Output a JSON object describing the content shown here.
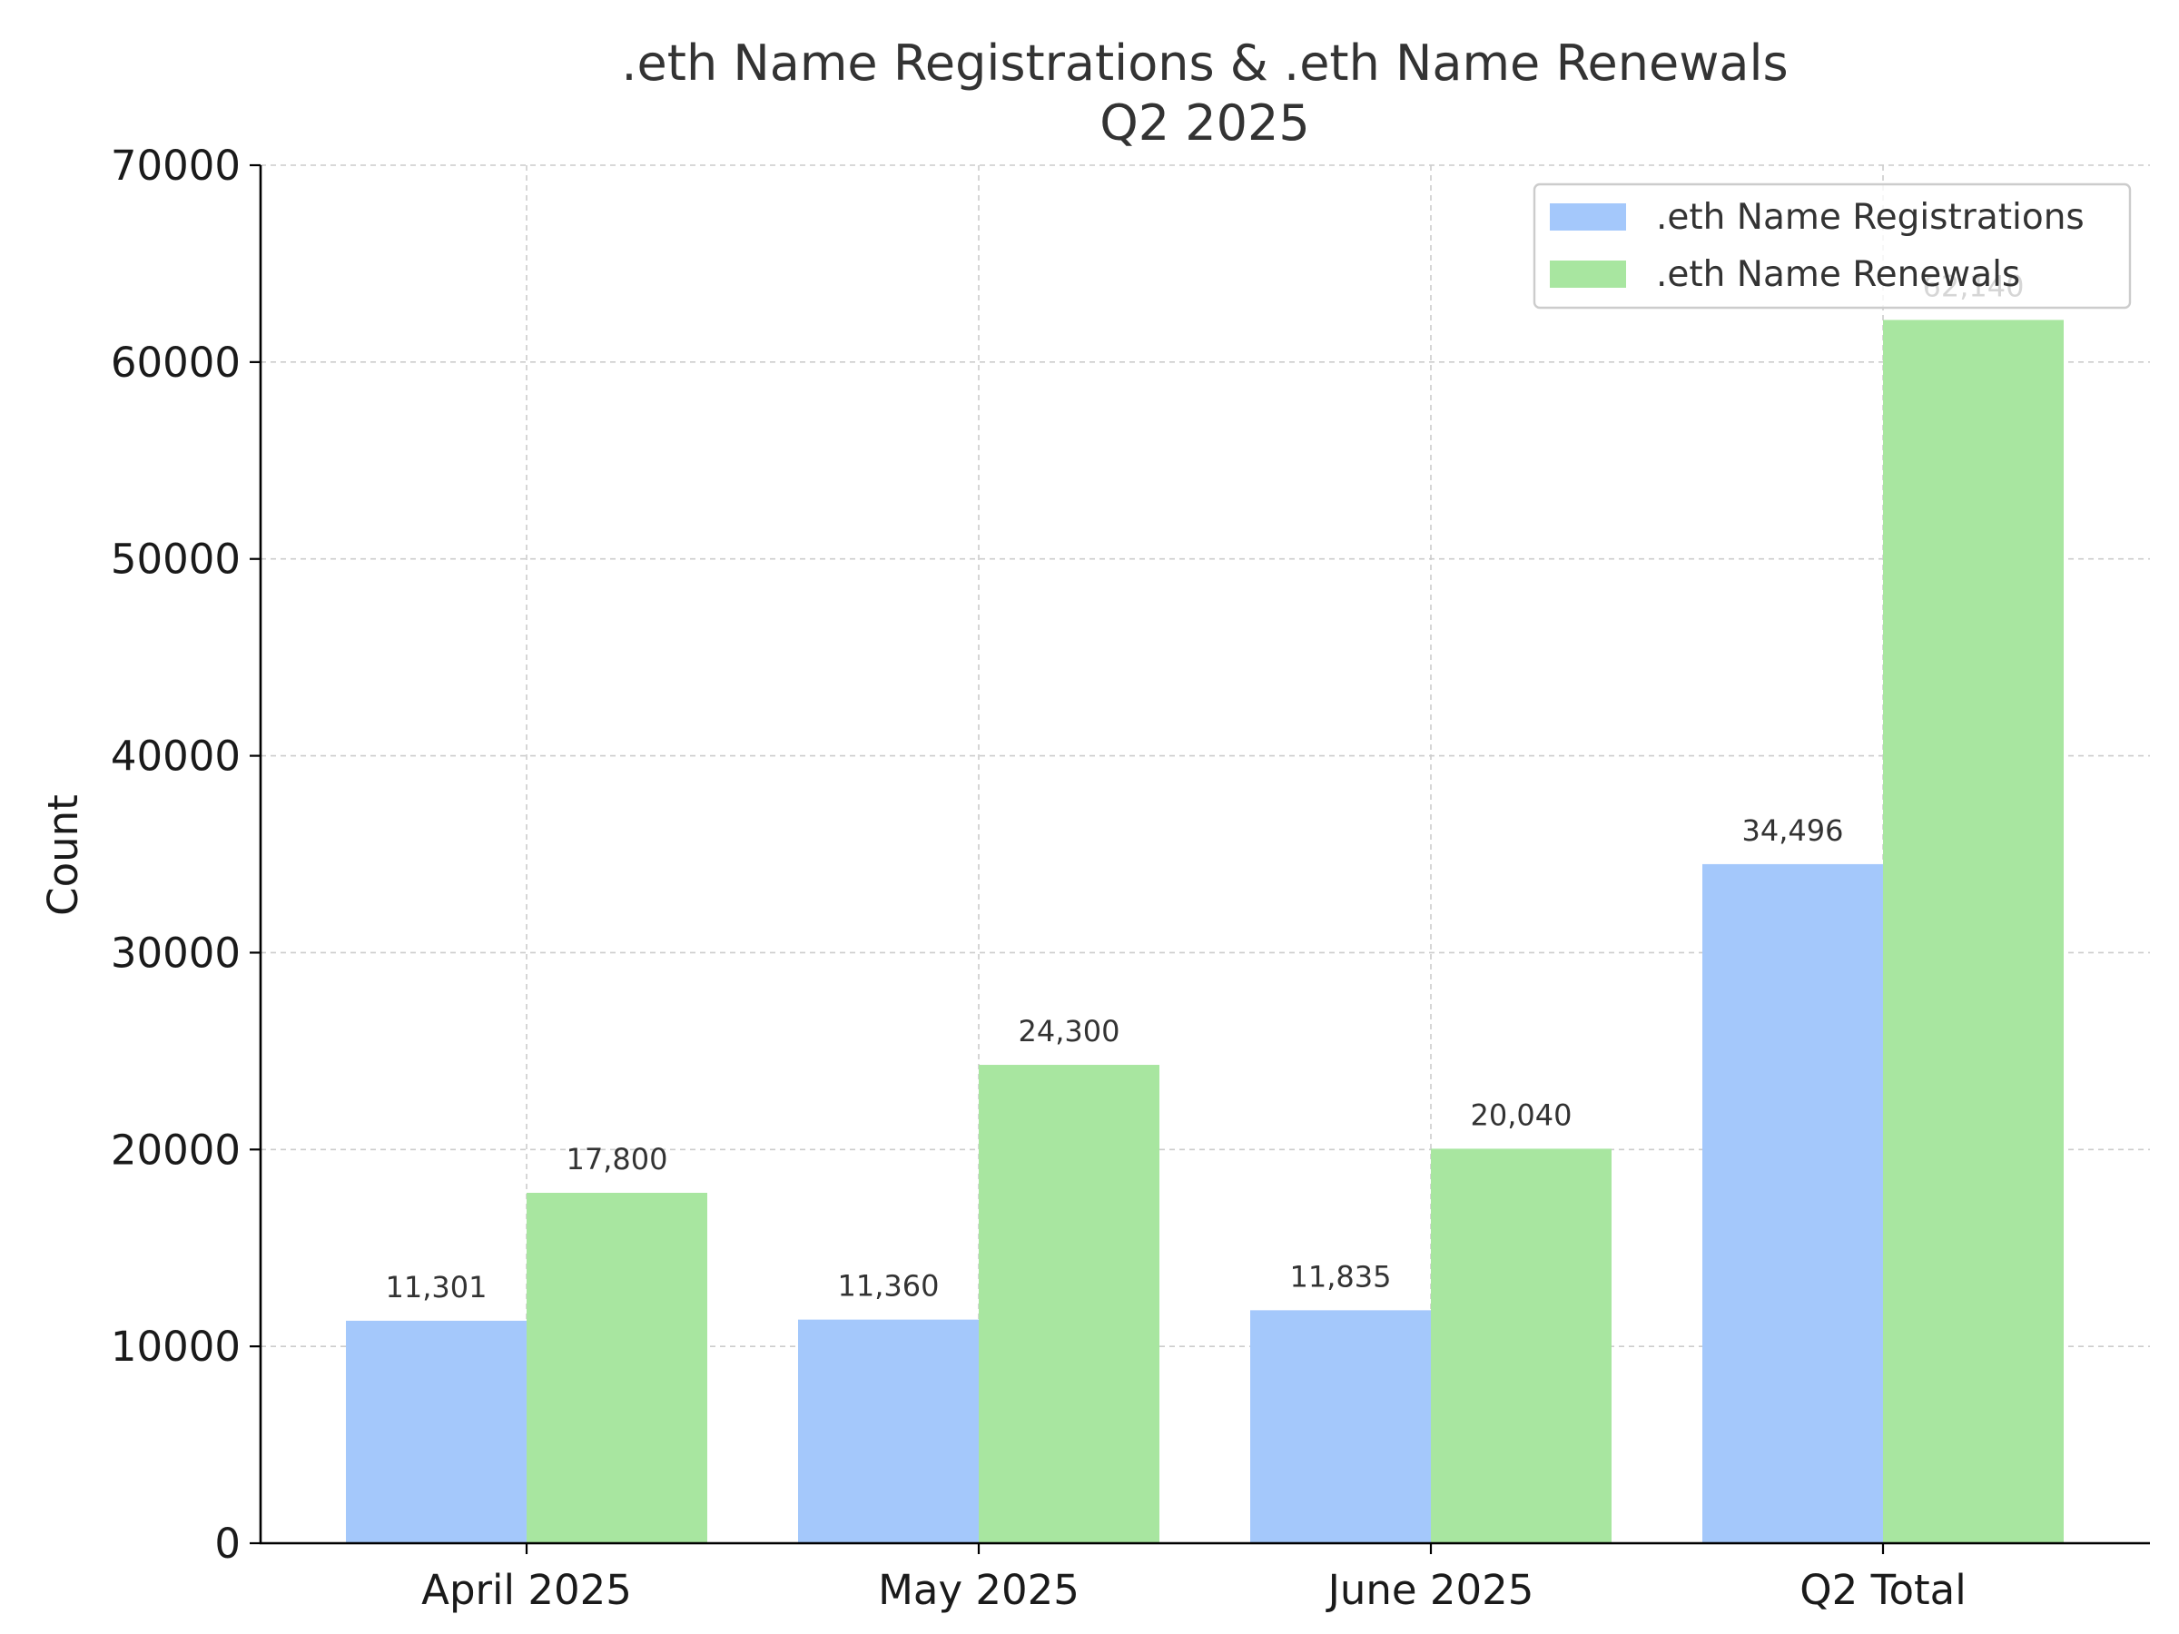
{
  "chart_data": {
    "type": "bar",
    "title": ".eth Name Registrations & .eth Name Renewals",
    "subtitle": "Q2 2025",
    "xlabel": "",
    "ylabel": "Count",
    "categories": [
      "April 2025",
      "May 2025",
      "June 2025",
      "Q2 Total"
    ],
    "series": [
      {
        "name": ".eth Name Registrations",
        "values": [
          11301,
          11360,
          11835,
          34496
        ],
        "labels": [
          "11,301",
          "11,360",
          "11,835",
          "34,496"
        ],
        "color": "#a4c8fb"
      },
      {
        "name": ".eth Name Renewals",
        "values": [
          17800,
          24300,
          20040,
          62140
        ],
        "labels": [
          "17,800",
          "24,300",
          "20,040",
          "62,140"
        ],
        "color": "#a8e6a0"
      }
    ],
    "ylim": [
      0,
      70000
    ],
    "yticks": [
      0,
      10000,
      20000,
      30000,
      40000,
      50000,
      60000,
      70000
    ],
    "ytick_labels": [
      "0",
      "10000",
      "20000",
      "30000",
      "40000",
      "50000",
      "60000",
      "70000"
    ],
    "grid": true,
    "legend_position": "top-right"
  }
}
